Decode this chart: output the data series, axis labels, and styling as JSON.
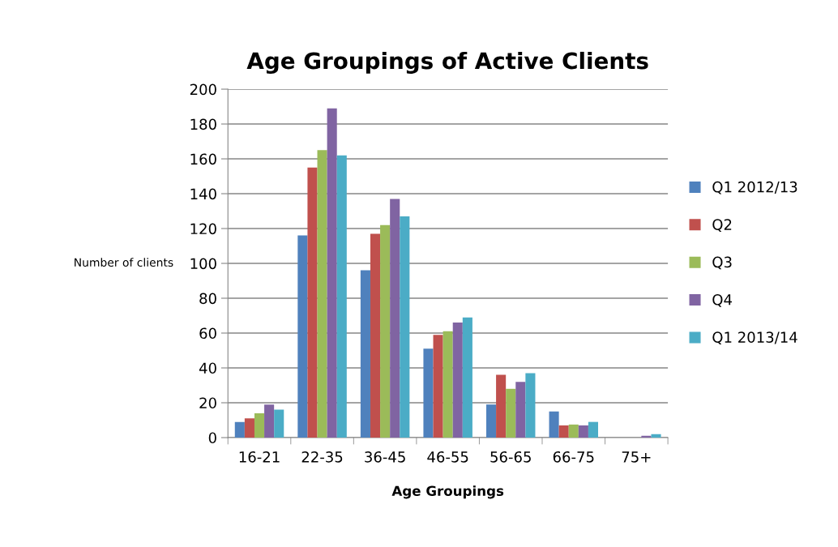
{
  "chart_data": {
    "type": "bar",
    "title": "Age Groupings of Active Clients",
    "xlabel": "Age Groupings",
    "ylabel": "Number of clients",
    "categories": [
      "16-21",
      "22-35",
      "36-45",
      "46-55",
      "56-65",
      "66-75",
      "75+"
    ],
    "series": [
      {
        "name": "Q1 2012/13",
        "color": "#4f81bd",
        "values": [
          9,
          116,
          96,
          51,
          19,
          15,
          0
        ]
      },
      {
        "name": "Q2",
        "color": "#c0504d",
        "values": [
          11,
          155,
          117,
          59,
          36,
          7,
          0
        ]
      },
      {
        "name": "Q3",
        "color": "#9bbb59",
        "values": [
          14,
          165,
          122,
          61,
          28,
          7.5,
          0
        ]
      },
      {
        "name": "Q4",
        "color": "#8064a2",
        "values": [
          19,
          189,
          137,
          66,
          32,
          7,
          1
        ]
      },
      {
        "name": "Q1 2013/14",
        "color": "#4bacc6",
        "values": [
          16,
          162,
          127,
          69,
          37,
          9,
          2
        ]
      }
    ],
    "ylim": [
      0,
      200
    ],
    "yticks": [
      0,
      20,
      40,
      60,
      80,
      100,
      120,
      140,
      160,
      180,
      200
    ],
    "grid": "y",
    "legend": "right"
  }
}
